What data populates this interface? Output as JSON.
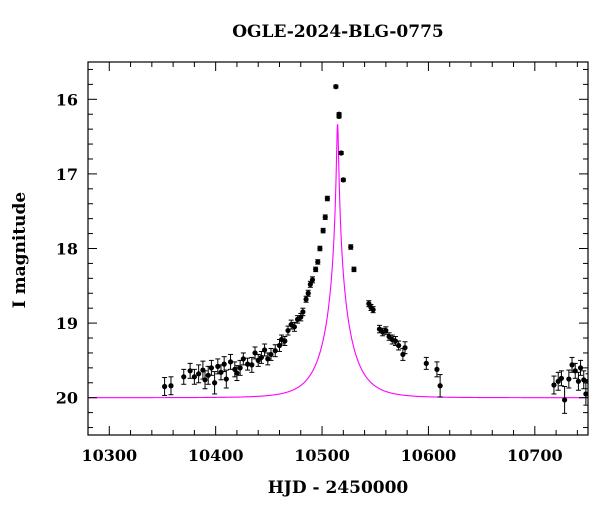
{
  "chart_data": {
    "type": "scatter",
    "title": "OGLE-2024-BLG-0775",
    "xlabel": "HJD - 2450000",
    "ylabel": "I magnitude",
    "xlim": [
      10280,
      10750
    ],
    "ylim": [
      20.5,
      15.5
    ],
    "y_inverted": true,
    "x_ticks": [
      10300,
      10400,
      10500,
      10600,
      10700
    ],
    "y_ticks": [
      16,
      17,
      18,
      19,
      20
    ],
    "grid": false,
    "series": [
      {
        "kind": "points_with_errorbars",
        "color": "#000000",
        "points": [
          [
            10352,
            19.85,
            0.12
          ],
          [
            10358,
            19.84,
            0.12
          ],
          [
            10370,
            19.72,
            0.1
          ],
          [
            10376,
            19.64,
            0.1
          ],
          [
            10380,
            19.72,
            0.1
          ],
          [
            10384,
            19.68,
            0.12
          ],
          [
            10388,
            19.63,
            0.12
          ],
          [
            10390,
            19.76,
            0.12
          ],
          [
            10393,
            19.7,
            0.12
          ],
          [
            10396,
            19.6,
            0.1
          ],
          [
            10399,
            19.8,
            0.15
          ],
          [
            10402,
            19.58,
            0.1
          ],
          [
            10405,
            19.66,
            0.1
          ],
          [
            10408,
            19.55,
            0.1
          ],
          [
            10410,
            19.75,
            0.12
          ],
          [
            10414,
            19.52,
            0.1
          ],
          [
            10418,
            19.62,
            0.1
          ],
          [
            10420,
            19.67,
            0.1
          ],
          [
            10423,
            19.6,
            0.1
          ],
          [
            10426,
            19.48,
            0.08
          ],
          [
            10430,
            19.55,
            0.08
          ],
          [
            10434,
            19.56,
            0.1
          ],
          [
            10437,
            19.4,
            0.08
          ],
          [
            10440,
            19.5,
            0.08
          ],
          [
            10443,
            19.46,
            0.08
          ],
          [
            10446,
            19.36,
            0.08
          ],
          [
            10449,
            19.48,
            0.08
          ],
          [
            10452,
            19.42,
            0.08
          ],
          [
            10456,
            19.37,
            0.08
          ],
          [
            10460,
            19.3,
            0.08
          ],
          [
            10462,
            19.22,
            0.06
          ],
          [
            10465,
            19.24,
            0.06
          ],
          [
            10468,
            19.1,
            0.06
          ],
          [
            10471,
            19.02,
            0.06
          ],
          [
            10474,
            19.05,
            0.06
          ],
          [
            10477,
            18.95,
            0.05
          ],
          [
            10480,
            18.92,
            0.05
          ],
          [
            10482,
            18.85,
            0.05
          ],
          [
            10485,
            18.68,
            0.04
          ],
          [
            10487,
            18.6,
            0.04
          ],
          [
            10489,
            18.48,
            0.04
          ],
          [
            10491,
            18.42,
            0.04
          ],
          [
            10494,
            18.28,
            0.03
          ],
          [
            10496,
            18.18,
            0.03
          ],
          [
            10498,
            18.0,
            0.03
          ],
          [
            10501,
            17.76,
            0.03
          ],
          [
            10503,
            17.58,
            0.03
          ],
          [
            10505,
            17.33,
            0.03
          ],
          [
            10513,
            15.83,
            0.02
          ],
          [
            10516,
            16.2,
            0.02
          ],
          [
            10516,
            16.23,
            0.02
          ],
          [
            10518,
            16.72,
            0.02
          ],
          [
            10520,
            17.08,
            0.02
          ],
          [
            10527,
            17.98,
            0.03
          ],
          [
            10530,
            18.28,
            0.03
          ],
          [
            10544,
            18.74,
            0.04
          ],
          [
            10546,
            18.79,
            0.04
          ],
          [
            10548,
            18.82,
            0.04
          ],
          [
            10554,
            19.08,
            0.05
          ],
          [
            10557,
            19.12,
            0.05
          ],
          [
            10560,
            19.1,
            0.05
          ],
          [
            10563,
            19.18,
            0.05
          ],
          [
            10566,
            19.22,
            0.06
          ],
          [
            10569,
            19.24,
            0.06
          ],
          [
            10572,
            19.3,
            0.06
          ],
          [
            10576,
            19.42,
            0.08
          ],
          [
            10578,
            19.33,
            0.08
          ],
          [
            10598,
            19.54,
            0.08
          ],
          [
            10608,
            19.62,
            0.1
          ],
          [
            10611,
            19.84,
            0.15
          ],
          [
            10718,
            19.83,
            0.12
          ],
          [
            10722,
            19.78,
            0.12
          ],
          [
            10725,
            19.74,
            0.1
          ],
          [
            10728,
            20.03,
            0.18
          ],
          [
            10732,
            19.75,
            0.12
          ],
          [
            10735,
            19.56,
            0.1
          ],
          [
            10738,
            19.64,
            0.1
          ],
          [
            10741,
            19.78,
            0.12
          ],
          [
            10743,
            19.6,
            0.1
          ],
          [
            10746,
            19.76,
            0.12
          ],
          [
            10748,
            19.95,
            0.15
          ],
          [
            10750,
            19.78,
            0.1
          ]
        ]
      },
      {
        "kind": "model_curve",
        "color": "#ff00ff",
        "model": {
          "t0": 10514.6,
          "tE": 25,
          "u0": 0.034,
          "i_source": 20.0,
          "i_blend_free": true
        }
      }
    ]
  }
}
